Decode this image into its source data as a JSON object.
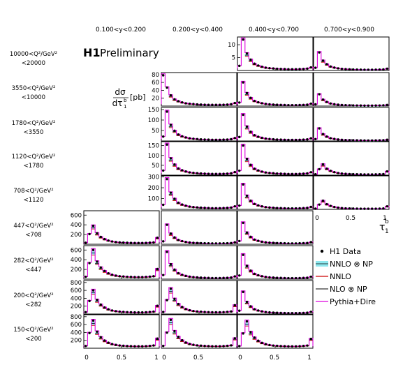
{
  "header": {
    "brand": "H1",
    "preliminary": "Preliminary",
    "yaxis_label_top": "dσ",
    "yaxis_label_bottom": "dτ",
    "yaxis_sup": "b",
    "yaxis_sub": "1",
    "yaxis_unit": "[pb]",
    "xaxis_label": "τ",
    "xaxis_sup": "b",
    "xaxis_sub": "1"
  },
  "columns": [
    "0.100<y<0.200",
    "0.200<y<0.400",
    "0.400<y<0.700",
    "0.700<y<0.900"
  ],
  "rows": [
    {
      "line1": "10000<Q²/GeV²",
      "line2": "<20000"
    },
    {
      "line1": "3550<Q²/GeV²",
      "line2": "<10000"
    },
    {
      "line1": "1780<Q²/GeV²",
      "line2": "<3550"
    },
    {
      "line1": "1120<Q²/GeV²",
      "line2": "<1780"
    },
    {
      "line1": "708<Q²/GeV²",
      "line2": "<1120"
    },
    {
      "line1": "447<Q²/GeV²",
      "line2": "<708"
    },
    {
      "line1": "282<Q²/GeV²",
      "line2": "<447"
    },
    {
      "line1": "200<Q²/GeV²",
      "line2": "<282"
    },
    {
      "line1": "150<Q²/GeV²",
      "line2": "<200"
    }
  ],
  "legend": [
    {
      "label": "H1 Data",
      "kind": "marker"
    },
    {
      "label": "NNLO ⊗ NP",
      "kind": "band"
    },
    {
      "label": "NNLO",
      "kind": "line-red"
    },
    {
      "label": "NLO ⊗ NP",
      "kind": "line-black"
    },
    {
      "label": "Pythia+Dire",
      "kind": "line-magenta"
    }
  ],
  "colors": {
    "data": "#000000",
    "nnlo_np_band": "#8fe8ee",
    "nnlo": "#cc0000",
    "nlo_np": "#000000",
    "pythia": "#dd00dd",
    "frame": "#000000"
  },
  "chart_data": {
    "type": "line",
    "grid": false,
    "xlabel": "τ1b",
    "ylabel": "dσ/dτ1b [pb]",
    "xlim": [
      0,
      1
    ],
    "x_ticks": [
      "0",
      "0.5",
      "1"
    ],
    "legend_position": "bottom-right",
    "bin_edges": [
      0,
      0.05,
      0.1,
      0.15,
      0.2,
      0.25,
      0.3,
      0.35,
      0.4,
      0.45,
      0.5,
      0.55,
      0.6,
      0.65,
      0.7,
      0.75,
      0.8,
      0.85,
      0.9,
      0.95,
      1.0
    ],
    "shape_template": [
      0.15,
      1.0,
      0.55,
      0.35,
      0.22,
      0.16,
      0.12,
      0.09,
      0.075,
      0.065,
      0.055,
      0.05,
      0.045,
      0.04,
      0.04,
      0.04,
      0.045,
      0.05,
      0.06,
      0.1
    ],
    "panels": [
      {
        "row": 0,
        "col": 2,
        "ylim": [
          0,
          13
        ],
        "y_ticks": [
          5,
          10
        ],
        "peak": 12.0,
        "peak_bin": 1
      },
      {
        "row": 0,
        "col": 3,
        "ylim": [
          0,
          13
        ],
        "y_ticks": [],
        "peak": 7.0,
        "peak_bin": 1
      },
      {
        "row": 1,
        "col": 1,
        "ylim": [
          0,
          85
        ],
        "y_ticks": [
          20,
          40,
          60,
          80
        ],
        "peak": 78,
        "peak_bin": 0
      },
      {
        "row": 1,
        "col": 2,
        "ylim": [
          0,
          85
        ],
        "y_ticks": [],
        "peak": 60,
        "peak_bin": 1
      },
      {
        "row": 1,
        "col": 3,
        "ylim": [
          0,
          85
        ],
        "y_ticks": [],
        "peak": 30,
        "peak_bin": 1
      },
      {
        "row": 2,
        "col": 1,
        "ylim": [
          0,
          160
        ],
        "y_ticks": [
          50,
          100,
          150
        ],
        "peak": 140,
        "peak_bin": 1
      },
      {
        "row": 2,
        "col": 2,
        "ylim": [
          0,
          160
        ],
        "y_ticks": [],
        "peak": 125,
        "peak_bin": 1
      },
      {
        "row": 2,
        "col": 3,
        "ylim": [
          0,
          160
        ],
        "y_ticks": [],
        "peak": 60,
        "peak_bin": 1
      },
      {
        "row": 3,
        "col": 1,
        "ylim": [
          0,
          170
        ],
        "y_ticks": [
          50,
          100,
          150
        ],
        "peak": 155,
        "peak_bin": 1
      },
      {
        "row": 3,
        "col": 2,
        "ylim": [
          0,
          170
        ],
        "y_ticks": [],
        "peak": 150,
        "peak_bin": 1
      },
      {
        "row": 3,
        "col": 3,
        "ylim": [
          0,
          170
        ],
        "y_ticks": [],
        "peak": 55,
        "peak_bin": 2
      },
      {
        "row": 4,
        "col": 1,
        "ylim": [
          0,
          310
        ],
        "y_ticks": [
          100,
          200,
          300
        ],
        "peak": 280,
        "peak_bin": 1
      },
      {
        "row": 4,
        "col": 2,
        "ylim": [
          0,
          310
        ],
        "y_ticks": [],
        "peak": 230,
        "peak_bin": 1
      },
      {
        "row": 4,
        "col": 3,
        "ylim": [
          0,
          310
        ],
        "y_ticks": [],
        "peak": 80,
        "peak_bin": 2
      },
      {
        "row": 5,
        "col": 0,
        "ylim": [
          0,
          690
        ],
        "y_ticks": [
          200,
          400,
          600
        ],
        "peak": 380,
        "peak_bin": 2
      },
      {
        "row": 5,
        "col": 1,
        "ylim": [
          0,
          690
        ],
        "y_ticks": [],
        "peak": 400,
        "peak_bin": 1
      },
      {
        "row": 5,
        "col": 2,
        "ylim": [
          0,
          690
        ],
        "y_ticks": [],
        "peak": 440,
        "peak_bin": 1
      },
      {
        "row": 6,
        "col": 0,
        "ylim": [
          0,
          690
        ],
        "y_ticks": [
          200,
          400,
          600
        ],
        "peak": 600,
        "peak_bin": 2
      },
      {
        "row": 6,
        "col": 1,
        "ylim": [
          0,
          690
        ],
        "y_ticks": [],
        "peak": 560,
        "peak_bin": 1
      },
      {
        "row": 6,
        "col": 2,
        "ylim": [
          0,
          690
        ],
        "y_ticks": [],
        "peak": 500,
        "peak_bin": 1
      },
      {
        "row": 7,
        "col": 0,
        "ylim": [
          0,
          850
        ],
        "y_ticks": [
          200,
          400,
          600,
          800
        ],
        "peak": 600,
        "peak_bin": 2
      },
      {
        "row": 7,
        "col": 1,
        "ylim": [
          0,
          850
        ],
        "y_ticks": [],
        "peak": 640,
        "peak_bin": 2
      },
      {
        "row": 7,
        "col": 2,
        "ylim": [
          0,
          850
        ],
        "y_ticks": [],
        "peak": 560,
        "peak_bin": 1
      },
      {
        "row": 8,
        "col": 0,
        "ylim": [
          0,
          850
        ],
        "y_ticks": [
          200,
          400,
          600,
          800
        ],
        "peak": 700,
        "peak_bin": 2
      },
      {
        "row": 8,
        "col": 1,
        "ylim": [
          0,
          850
        ],
        "y_ticks": [],
        "peak": 720,
        "peak_bin": 2
      },
      {
        "row": 8,
        "col": 2,
        "ylim": [
          0,
          850
        ],
        "y_ticks": [],
        "peak": 680,
        "peak_bin": 2
      }
    ]
  }
}
